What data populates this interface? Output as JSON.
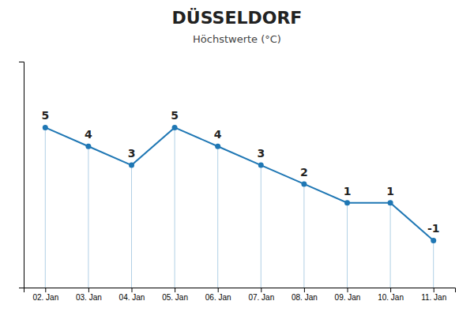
{
  "chart_data": {
    "type": "line",
    "title": "DÜSSELDORF",
    "subtitle": "Höchstwerte (°C)",
    "categories": [
      "02. Jan",
      "03. Jan",
      "04. Jan",
      "05. Jan",
      "06. Jan",
      "07. Jan",
      "08. Jan",
      "09. Jan",
      "10. Jan",
      "11. Jan"
    ],
    "values": [
      5,
      4,
      3,
      5,
      4,
      3,
      2,
      1,
      1,
      -1
    ],
    "ylim": [
      -3.5,
      8.5
    ],
    "grid": false,
    "data_labels": true,
    "tick_labels": "x"
  }
}
